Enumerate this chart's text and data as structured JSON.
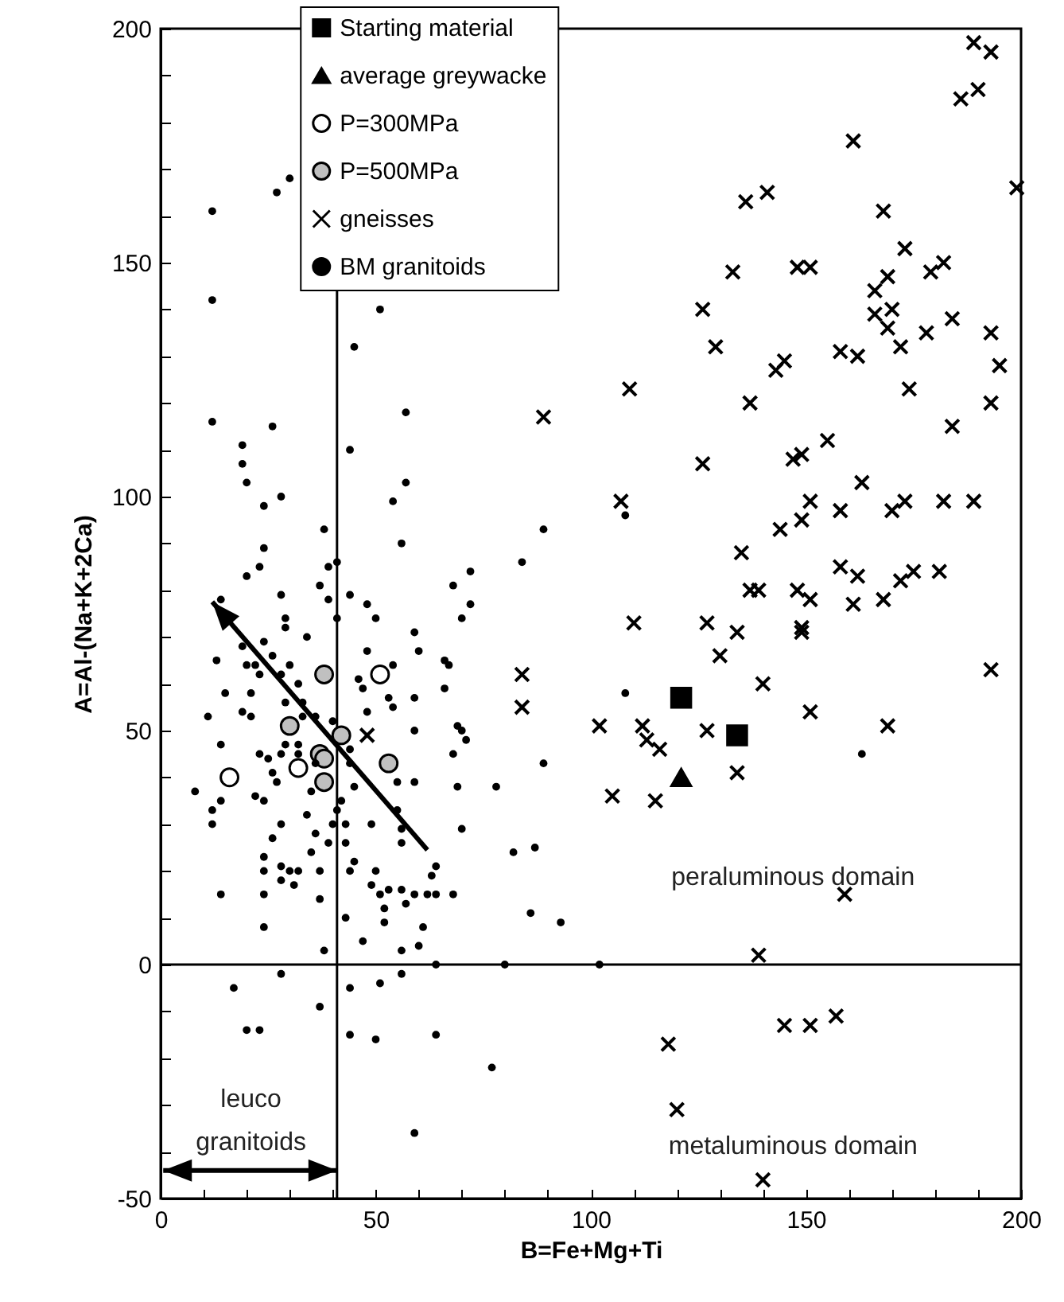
{
  "chart_data": {
    "type": "scatter",
    "xlabel": "B=Fe+Mg+Ti",
    "ylabel": "A=Al-(Na+K+2Ca)",
    "xlim": [
      0,
      200
    ],
    "ylim": [
      -50,
      200
    ],
    "xticks": [
      0,
      {
        "value": 10,
        "label": null
      },
      {
        "value": 20,
        "label": null
      },
      {
        "value": 30,
        "label": null
      },
      {
        "value": 40,
        "label": null
      },
      50,
      {
        "value": 60,
        "label": null
      },
      {
        "value": 70,
        "label": null
      },
      {
        "value": 80,
        "label": null
      },
      {
        "value": 90,
        "label": null
      },
      100,
      {
        "value": 110,
        "label": null
      },
      {
        "value": 120,
        "label": null
      },
      {
        "value": 130,
        "label": null
      },
      {
        "value": 140,
        "label": null
      },
      150,
      {
        "value": 160,
        "label": null
      },
      {
        "value": 170,
        "label": null
      },
      {
        "value": 180,
        "label": null
      },
      {
        "value": 190,
        "label": null
      },
      200
    ],
    "yticks": [
      -50,
      {
        "value": -40,
        "label": null
      },
      {
        "value": -30,
        "label": null
      },
      {
        "value": -20,
        "label": null
      },
      {
        "value": -10,
        "label": null
      },
      0,
      {
        "value": 10,
        "label": null
      },
      {
        "value": 20,
        "label": null
      },
      {
        "value": 30,
        "label": null
      },
      {
        "value": 40,
        "label": null
      },
      50,
      {
        "value": 60,
        "label": null
      },
      {
        "value": 70,
        "label": null
      },
      {
        "value": 80,
        "label": null
      },
      {
        "value": 90,
        "label": null
      },
      100,
      {
        "value": 110,
        "label": null
      },
      {
        "value": 120,
        "label": null
      },
      {
        "value": 130,
        "label": null
      },
      {
        "value": 140,
        "label": null
      },
      150,
      {
        "value": 160,
        "label": null
      },
      {
        "value": 170,
        "label": null
      },
      {
        "value": 180,
        "label": null
      },
      {
        "value": 190,
        "label": null
      },
      200
    ],
    "legend": "top",
    "grid": false,
    "ref_lines": [
      {
        "axis": "x",
        "value": 41,
        "color": "#000000"
      },
      {
        "axis": "y",
        "value": 0,
        "color": "#000000"
      }
    ],
    "annotations": [
      "peraluminous domain",
      "metaluminous domain",
      "leuco\ngranitoids"
    ],
    "series": [
      {
        "name": "Starting material",
        "marker": "square",
        "color": "#000000",
        "x": [
          121,
          134
        ],
        "values": [
          57,
          49
        ]
      },
      {
        "name": "average greywacke",
        "marker": "triangle",
        "color": "#000000",
        "x": [
          121
        ],
        "values": [
          40
        ]
      },
      {
        "name": "P=300MPa",
        "marker": "circle",
        "color": "#ffffff",
        "x": [
          51,
          16,
          32
        ],
        "values": [
          62,
          40,
          42
        ]
      },
      {
        "name": "P=500MPa",
        "marker": "circle",
        "color": "#c0c0c0",
        "x": [
          38,
          30,
          42,
          37,
          38,
          53,
          38
        ],
        "values": [
          62,
          51,
          49,
          45,
          44,
          43,
          39
        ]
      },
      {
        "name": "gneisses",
        "marker": "cross",
        "color": "#000000",
        "x": [
          189,
          193,
          190,
          186,
          161,
          199,
          136,
          141,
          168,
          173,
          182,
          179,
          148,
          151,
          133,
          169,
          166,
          166,
          170,
          169,
          172,
          178,
          184,
          193,
          195,
          193,
          126,
          129,
          145,
          143,
          158,
          162,
          174,
          184,
          109,
          89,
          137,
          155,
          147,
          149,
          126,
          163,
          107,
          151,
          158,
          170,
          173,
          182,
          189,
          144,
          149,
          135,
          158,
          162,
          137,
          139,
          148,
          151,
          161,
          168,
          172,
          175,
          181,
          110,
          127,
          134,
          149,
          149,
          130,
          84,
          193,
          140,
          84,
          151,
          102,
          112,
          113,
          116,
          127,
          169,
          134,
          105,
          115,
          159,
          139,
          118,
          120,
          145,
          151,
          157,
          140,
          48
        ],
        "values": [
          197,
          195,
          187,
          185,
          176,
          166,
          163,
          165,
          161,
          153,
          150,
          148,
          149,
          149,
          148,
          147,
          144,
          139,
          140,
          136,
          132,
          135,
          138,
          135,
          128,
          120,
          140,
          132,
          129,
          127,
          131,
          130,
          123,
          115,
          123,
          117,
          120,
          112,
          108,
          109,
          107,
          103,
          99,
          99,
          97,
          97,
          99,
          99,
          99,
          93,
          95,
          88,
          85,
          83,
          80,
          80,
          80,
          78,
          77,
          78,
          82,
          84,
          84,
          73,
          73,
          71,
          72,
          71,
          66,
          62,
          63,
          60,
          55,
          54,
          51,
          51,
          48,
          46,
          50,
          51,
          41,
          36,
          35,
          15,
          2,
          -17,
          -31,
          -13,
          -13,
          -11,
          -46,
          49
        ]
      },
      {
        "name": "BM granitoids",
        "marker": "circle",
        "color": "#000000",
        "x": [
          12,
          27,
          30,
          12,
          51,
          45,
          57,
          12,
          26,
          19,
          19,
          44,
          20,
          57,
          28,
          24,
          54,
          38,
          24,
          56,
          23,
          20,
          41,
          39,
          37,
          28,
          39,
          44,
          41,
          48,
          50,
          29,
          29,
          14,
          34,
          59,
          60,
          48,
          68,
          72,
          70,
          72,
          19,
          24,
          13,
          26,
          20,
          22,
          23,
          28,
          30,
          32,
          15,
          21,
          46,
          47,
          54,
          66,
          67,
          66,
          53,
          54,
          59,
          48,
          29,
          33,
          19,
          21,
          11,
          33,
          36,
          40,
          59,
          69,
          70,
          71,
          14,
          29,
          32,
          32,
          23,
          25,
          28,
          36,
          44,
          44,
          68,
          26,
          27,
          55,
          59,
          69,
          8,
          12,
          12,
          14,
          22,
          24,
          35,
          42,
          45,
          41,
          34,
          28,
          40,
          43,
          49,
          55,
          56,
          56,
          70,
          26,
          36,
          39,
          43,
          24,
          35,
          24,
          28,
          30,
          28,
          31,
          32,
          37,
          45,
          44,
          50,
          49,
          64,
          63,
          14,
          24,
          37,
          51,
          53,
          56,
          59,
          57,
          52,
          52,
          62,
          64,
          68,
          61,
          24,
          43,
          47,
          56,
          60,
          38,
          17,
          28,
          37,
          20,
          23,
          44,
          51,
          56,
          64,
          80,
          44,
          50,
          64,
          77,
          59,
          102,
          108,
          108,
          163,
          89,
          84,
          89,
          78,
          82,
          87,
          86,
          93
        ],
        "values": [
          161,
          165,
          168,
          142,
          140,
          132,
          118,
          116,
          115,
          111,
          107,
          110,
          103,
          103,
          100,
          98,
          99,
          93,
          89,
          90,
          85,
          83,
          86,
          85,
          81,
          79,
          78,
          79,
          74,
          77,
          74,
          74,
          72,
          78,
          70,
          71,
          67,
          67,
          81,
          77,
          74,
          84,
          68,
          69,
          65,
          66,
          64,
          64,
          62,
          62,
          64,
          60,
          58,
          58,
          61,
          59,
          64,
          65,
          64,
          59,
          57,
          55,
          57,
          54,
          56,
          56,
          54,
          53,
          53,
          53,
          53,
          52,
          50,
          51,
          50,
          48,
          47,
          47,
          47,
          45,
          45,
          44,
          45,
          43,
          46,
          43,
          45,
          41,
          39,
          39,
          39,
          38,
          37,
          33,
          30,
          35,
          36,
          35,
          37,
          35,
          38,
          33,
          32,
          30,
          30,
          30,
          30,
          33,
          29,
          26,
          29,
          27,
          28,
          26,
          26,
          23,
          24,
          20,
          21,
          20,
          18,
          17,
          20,
          20,
          22,
          20,
          20,
          17,
          21,
          19,
          15,
          15,
          14,
          15,
          16,
          16,
          15,
          13,
          12,
          9,
          15,
          15,
          15,
          8,
          8,
          10,
          5,
          3,
          4,
          3,
          -5,
          -2,
          -9,
          -14,
          -14,
          -5,
          -4,
          -2,
          0,
          0,
          -15,
          -16,
          -15,
          -22,
          -36,
          0,
          96,
          58,
          45,
          93,
          86,
          43,
          38,
          24,
          25,
          11,
          9
        ]
      }
    ]
  }
}
